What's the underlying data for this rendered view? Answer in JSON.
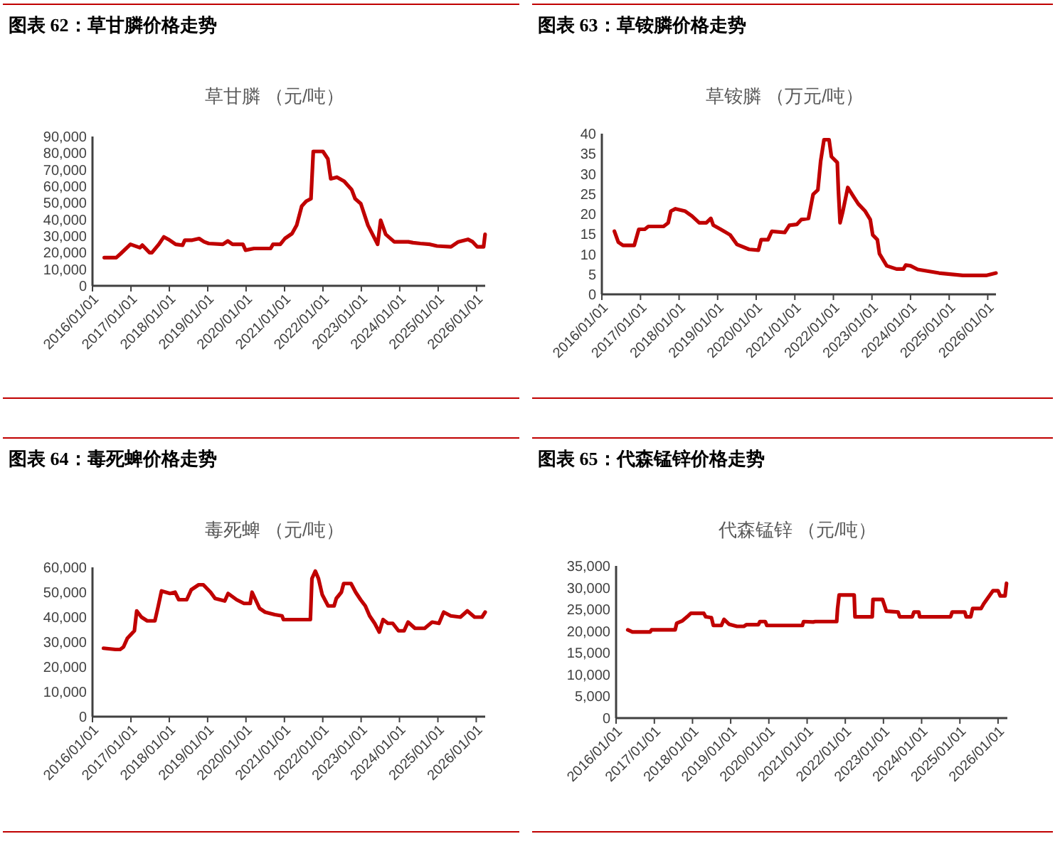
{
  "chart_data": [
    {
      "type": "line",
      "title": "图表 62：草甘膦价格走势",
      "subtitle": "草甘膦 （元/吨）",
      "color": "#c00000",
      "x": [
        "2016-04-22",
        "2016-08-14",
        "2016-09-27",
        "2016-12-27",
        "2017-03-27",
        "2017-04-19",
        "2017-06-27",
        "2017-07-19",
        "2017-09-23",
        "2017-11-10",
        "2017-12-23",
        "2018-03-02",
        "2018-05-07",
        "2018-05-28",
        "2018-08-07",
        "2018-10-11",
        "2018-11-28",
        "2019-01-11",
        "2019-05-25",
        "2019-07-11",
        "2019-08-25",
        "2019-12-02",
        "2019-12-27",
        "2020-03-16",
        "2020-08-21",
        "2020-09-13",
        "2020-11-21",
        "2021-01-04",
        "2021-03-13",
        "2021-04-26",
        "2021-06-13",
        "2021-07-26",
        "2021-09-09",
        "2021-10-01",
        "2022-01-01",
        "2022-02-17",
        "2022-03-16",
        "2022-05-14",
        "2022-07-22",
        "2022-10-01",
        "2022-11-03",
        "2022-12-27",
        "2023-03-05",
        "2023-06-05",
        "2023-07-04",
        "2023-08-21",
        "2023-11-10",
        "2024-03-23",
        "2024-05-07",
        "2024-07-15",
        "2024-10-15",
        "2024-12-20",
        "2025-05-03",
        "2025-07-11",
        "2025-10-11",
        "2025-11-25",
        "2026-01-08",
        "2026-03-09",
        "2026-03-23"
      ],
      "values": [
        17000,
        17000,
        19500,
        25000,
        23000,
        24500,
        20000,
        20000,
        25000,
        29500,
        28000,
        25000,
        24500,
        27500,
        27500,
        28500,
        26500,
        25500,
        25000,
        27000,
        25000,
        25000,
        21500,
        22500,
        22500,
        25000,
        25000,
        28500,
        31500,
        36500,
        48000,
        51000,
        52500,
        81000,
        81000,
        76500,
        64500,
        65500,
        63000,
        58000,
        52500,
        49500,
        36500,
        25000,
        39500,
        31000,
        26500,
        26500,
        26000,
        25500,
        25000,
        24000,
        23500,
        26500,
        28000,
        26500,
        23500,
        23500,
        31000
      ],
      "xlim": [
        "2016-01-01",
        "2026-03-24"
      ],
      "ylim": [
        0,
        90000
      ],
      "xticks": [
        {
          "value": "2016-01-01",
          "label": "2016/01/01"
        },
        {
          "value": "2017-01-01",
          "label": "2017/01/01"
        },
        {
          "value": "2018-01-01",
          "label": "2018/01/01"
        },
        {
          "value": "2019-01-01",
          "label": "2019/01/01"
        },
        {
          "value": "2020-01-01",
          "label": "2020/01/01"
        },
        {
          "value": "2021-01-01",
          "label": "2021/01/01"
        },
        {
          "value": "2022-01-01",
          "label": "2022/01/01"
        },
        {
          "value": "2023-01-01",
          "label": "2023/01/01"
        },
        {
          "value": "2024-01-01",
          "label": "2024/01/01"
        },
        {
          "value": "2025-01-01",
          "label": "2025/01/01"
        },
        {
          "value": "2026-01-01",
          "label": "2026/01/01"
        }
      ],
      "yticks": [
        0,
        {
          "value": 10000,
          "label": "10,000"
        },
        {
          "value": 20000,
          "label": "20,000"
        },
        {
          "value": 30000,
          "label": "30,000"
        },
        {
          "value": 40000,
          "label": "40,000"
        },
        {
          "value": 50000,
          "label": "50,000"
        },
        {
          "value": 60000,
          "label": "60,000"
        },
        {
          "value": 70000,
          "label": "70,000"
        },
        {
          "value": 80000,
          "label": "80,000"
        },
        {
          "value": 90000,
          "label": "90,000"
        }
      ]
    },
    {
      "type": "line",
      "title": "图表 63：草铵膦价格走势",
      "subtitle": "草铵膦 （万元/吨）",
      "color": "#c00000",
      "x": [
        "2016-04-29",
        "2016-06-05",
        "2016-07-19",
        "2016-11-03",
        "2016-12-16",
        "2017-02-10",
        "2017-03-16",
        "2017-08-07",
        "2017-09-20",
        "2017-10-15",
        "2017-11-28",
        "2018-02-28",
        "2018-05-03",
        "2018-07-11",
        "2018-09-16",
        "2018-10-29",
        "2018-11-21",
        "2019-01-29",
        "2019-04-29",
        "2019-07-04",
        "2019-10-26",
        "2020-01-22",
        "2020-02-17",
        "2020-04-22",
        "2020-05-28",
        "2020-09-27",
        "2020-11-10",
        "2021-01-19",
        "2021-03-02",
        "2021-05-10",
        "2021-06-23",
        "2021-08-07",
        "2021-09-02",
        "2021-10-04",
        "2021-11-21",
        "2021-12-13",
        "2022-02-07",
        "2022-02-17",
        "2022-03-05",
        "2022-04-01",
        "2022-05-17",
        "2022-07-11",
        "2022-08-25",
        "2022-10-29",
        "2022-12-16",
        "2023-01-08",
        "2023-02-21",
        "2023-03-13",
        "2023-05-21",
        "2023-08-21",
        "2023-10-26",
        "2023-11-17",
        "2024-01-01",
        "2024-03-09",
        "2024-09-27",
        "2025-05-10",
        "2025-12-16",
        "2026-03-20"
      ],
      "values": [
        15.7,
        13,
        12.2,
        12.2,
        16.2,
        16.2,
        16.9,
        16.9,
        17.8,
        20.7,
        21.3,
        20.7,
        19.5,
        17.8,
        17.8,
        18.9,
        17.2,
        16.2,
        14.8,
        12.4,
        11.2,
        11,
        13.6,
        13.6,
        15.7,
        15.4,
        17.2,
        17.4,
        18.6,
        18.9,
        24.9,
        26,
        33.1,
        38.5,
        38.5,
        34.3,
        32.8,
        26,
        17.8,
        20.7,
        26.6,
        24.3,
        22.5,
        20.7,
        18.6,
        14.8,
        13.6,
        10.1,
        7.1,
        6.3,
        6.3,
        7.3,
        7.1,
        6.2,
        5.3,
        4.7,
        4.7,
        5.3
      ],
      "xlim": [
        "2016-01-01",
        "2026-03-20"
      ],
      "ylim": [
        0,
        40
      ],
      "xticks": [
        {
          "value": "2016-01-01",
          "label": "2016/01/01"
        },
        {
          "value": "2017-01-01",
          "label": "2017/01/01"
        },
        {
          "value": "2018-01-01",
          "label": "2018/01/01"
        },
        {
          "value": "2019-01-01",
          "label": "2019/01/01"
        },
        {
          "value": "2020-01-01",
          "label": "2020/01/01"
        },
        {
          "value": "2021-01-01",
          "label": "2021/01/01"
        },
        {
          "value": "2022-01-01",
          "label": "2022/01/01"
        },
        {
          "value": "2023-01-01",
          "label": "2023/01/01"
        },
        {
          "value": "2024-01-01",
          "label": "2024/01/01"
        },
        {
          "value": "2025-01-01",
          "label": "2025/01/01"
        },
        {
          "value": "2026-01-01",
          "label": "2026/01/01"
        }
      ],
      "yticks": [
        0,
        5,
        10,
        15,
        20,
        25,
        30,
        35,
        40
      ]
    },
    {
      "type": "line",
      "title": "图表 64：毒死蜱价格走势",
      "subtitle": "毒死蜱 （元/吨）",
      "color": "#c00000",
      "x": [
        "2016-04-15",
        "2016-08-07",
        "2016-09-20",
        "2016-10-22",
        "2016-11-28",
        "2017-02-03",
        "2017-02-25",
        "2017-04-11",
        "2017-06-05",
        "2017-08-17",
        "2017-09-16",
        "2017-10-19",
        "2018-01-08",
        "2018-02-25",
        "2018-04-01",
        "2018-06-16",
        "2018-07-29",
        "2018-10-08",
        "2018-11-21",
        "2019-01-29",
        "2019-03-13",
        "2019-06-13",
        "2019-07-15",
        "2019-10-04",
        "2019-12-13",
        "2020-02-10",
        "2020-02-28",
        "2020-05-10",
        "2020-07-01",
        "2020-10-01",
        "2020-12-09",
        "2020-12-23",
        "2021-09-05",
        "2021-09-20",
        "2021-10-22",
        "2021-11-21",
        "2021-12-27",
        "2022-02-21",
        "2022-04-19",
        "2022-05-10",
        "2022-06-27",
        "2022-07-19",
        "2022-09-27",
        "2022-11-10",
        "2022-12-27",
        "2023-02-10",
        "2023-03-23",
        "2023-05-10",
        "2023-06-23",
        "2023-07-29",
        "2023-09-13",
        "2023-10-29",
        "2023-12-23",
        "2024-02-14",
        "2024-03-23",
        "2024-05-28",
        "2024-08-28",
        "2024-11-07",
        "2025-01-11",
        "2025-02-25",
        "2025-05-03",
        "2025-08-03",
        "2025-10-08",
        "2025-12-16",
        "2026-02-25",
        "2026-03-27"
      ],
      "values": [
        27500,
        27000,
        27000,
        28000,
        31500,
        34500,
        42500,
        40000,
        38500,
        38500,
        44000,
        50500,
        49500,
        50000,
        47000,
        47000,
        51000,
        53000,
        53000,
        50000,
        47500,
        46500,
        49500,
        47000,
        45500,
        45500,
        50000,
        43500,
        42000,
        41000,
        40500,
        39000,
        39000,
        55500,
        58500,
        55500,
        49000,
        44500,
        44500,
        47500,
        50000,
        53500,
        53500,
        50000,
        47000,
        44500,
        40500,
        37500,
        34000,
        39000,
        37500,
        37500,
        34500,
        34500,
        38000,
        35500,
        35500,
        38000,
        37500,
        42000,
        40500,
        40000,
        42500,
        40000,
        40000,
        42000
      ],
      "xlim": [
        "2016-01-01",
        "2026-03-27"
      ],
      "ylim": [
        0,
        60000
      ],
      "xticks": [
        {
          "value": "2016-01-01",
          "label": "2016/01/01"
        },
        {
          "value": "2017-01-01",
          "label": "2017/01/01"
        },
        {
          "value": "2018-01-01",
          "label": "2018/01/01"
        },
        {
          "value": "2019-01-01",
          "label": "2019/01/01"
        },
        {
          "value": "2020-01-01",
          "label": "2020/01/01"
        },
        {
          "value": "2021-01-01",
          "label": "2021/01/01"
        },
        {
          "value": "2022-01-01",
          "label": "2022/01/01"
        },
        {
          "value": "2023-01-01",
          "label": "2023/01/01"
        },
        {
          "value": "2024-01-01",
          "label": "2024/01/01"
        },
        {
          "value": "2025-01-01",
          "label": "2025/01/01"
        },
        {
          "value": "2026-01-01",
          "label": "2026/01/01"
        }
      ],
      "yticks": [
        0,
        {
          "value": 10000,
          "label": "10,000"
        },
        {
          "value": 20000,
          "label": "20,000"
        },
        {
          "value": 30000,
          "label": "30,000"
        },
        {
          "value": 40000,
          "label": "40,000"
        },
        {
          "value": 50000,
          "label": "50,000"
        },
        {
          "value": 60000,
          "label": "60,000"
        }
      ]
    },
    {
      "type": "line",
      "title": "图表 65：代森锰锌价格走势",
      "subtitle": "代森锰锌 （元/吨）",
      "color": "#c00000",
      "x": [
        "2016-04-22",
        "2016-06-05",
        "2016-11-21",
        "2016-12-05",
        "2017-07-19",
        "2017-08-03",
        "2017-09-27",
        "2017-11-10",
        "2017-12-16",
        "2018-04-19",
        "2018-05-07",
        "2018-07-01",
        "2018-07-19",
        "2018-10-04",
        "2018-10-29",
        "2018-12-16",
        "2019-03-02",
        "2019-05-07",
        "2019-06-02",
        "2019-09-23",
        "2019-10-08",
        "2019-11-28",
        "2019-12-13",
        "2020-11-17",
        "2020-11-28",
        "2021-02-28",
        "2021-03-20",
        "2021-10-11",
        "2021-10-19",
        "2021-11-03",
        "2022-03-27",
        "2022-04-04",
        "2022-09-16",
        "2022-09-23",
        "2022-12-23",
        "2023-01-29",
        "2023-05-21",
        "2023-06-05",
        "2023-10-04",
        "2023-10-19",
        "2023-12-05",
        "2023-12-13",
        "2024-10-04",
        "2024-10-19",
        "2025-02-17",
        "2025-03-02",
        "2025-04-15",
        "2025-05-03",
        "2025-07-22",
        "2025-08-17",
        "2025-11-14",
        "2026-01-01",
        "2026-01-22",
        "2026-03-09",
        "2026-03-23"
      ],
      "values": [
        20300,
        19800,
        19800,
        20300,
        20300,
        21800,
        22400,
        23300,
        24100,
        24100,
        23300,
        23100,
        21300,
        21300,
        22700,
        21600,
        21100,
        21100,
        21500,
        21500,
        22200,
        22200,
        21300,
        21300,
        22200,
        22100,
        22200,
        22200,
        25100,
        28300,
        28300,
        23300,
        23300,
        27300,
        27300,
        24600,
        24400,
        23300,
        23300,
        24400,
        24400,
        23300,
        23300,
        24400,
        24400,
        23300,
        23300,
        25200,
        25200,
        26300,
        29300,
        29300,
        28100,
        28100,
        31000
      ],
      "xlim": [
        "2016-01-01",
        "2026-03-31"
      ],
      "ylim": [
        0,
        35000
      ],
      "xticks": [
        {
          "value": "2016-01-01",
          "label": "2016/01/01"
        },
        {
          "value": "2017-01-01",
          "label": "2017/01/01"
        },
        {
          "value": "2018-01-01",
          "label": "2018/01/01"
        },
        {
          "value": "2019-01-01",
          "label": "2019/01/01"
        },
        {
          "value": "2020-01-01",
          "label": "2020/01/01"
        },
        {
          "value": "2021-01-01",
          "label": "2021/01/01"
        },
        {
          "value": "2022-01-01",
          "label": "2022/01/01"
        },
        {
          "value": "2023-01-01",
          "label": "2023/01/01"
        },
        {
          "value": "2024-01-01",
          "label": "2024/01/01"
        },
        {
          "value": "2025-01-01",
          "label": "2025/01/01"
        },
        {
          "value": "2026-01-01",
          "label": "2026/01/01"
        }
      ],
      "yticks": [
        0,
        {
          "value": 5000,
          "label": "5,000"
        },
        {
          "value": 10000,
          "label": "10,000"
        },
        {
          "value": 15000,
          "label": "15,000"
        },
        {
          "value": 20000,
          "label": "20,000"
        },
        {
          "value": 25000,
          "label": "25,000"
        },
        {
          "value": 30000,
          "label": "30,000"
        },
        {
          "value": 35000,
          "label": "35,000"
        }
      ]
    }
  ]
}
